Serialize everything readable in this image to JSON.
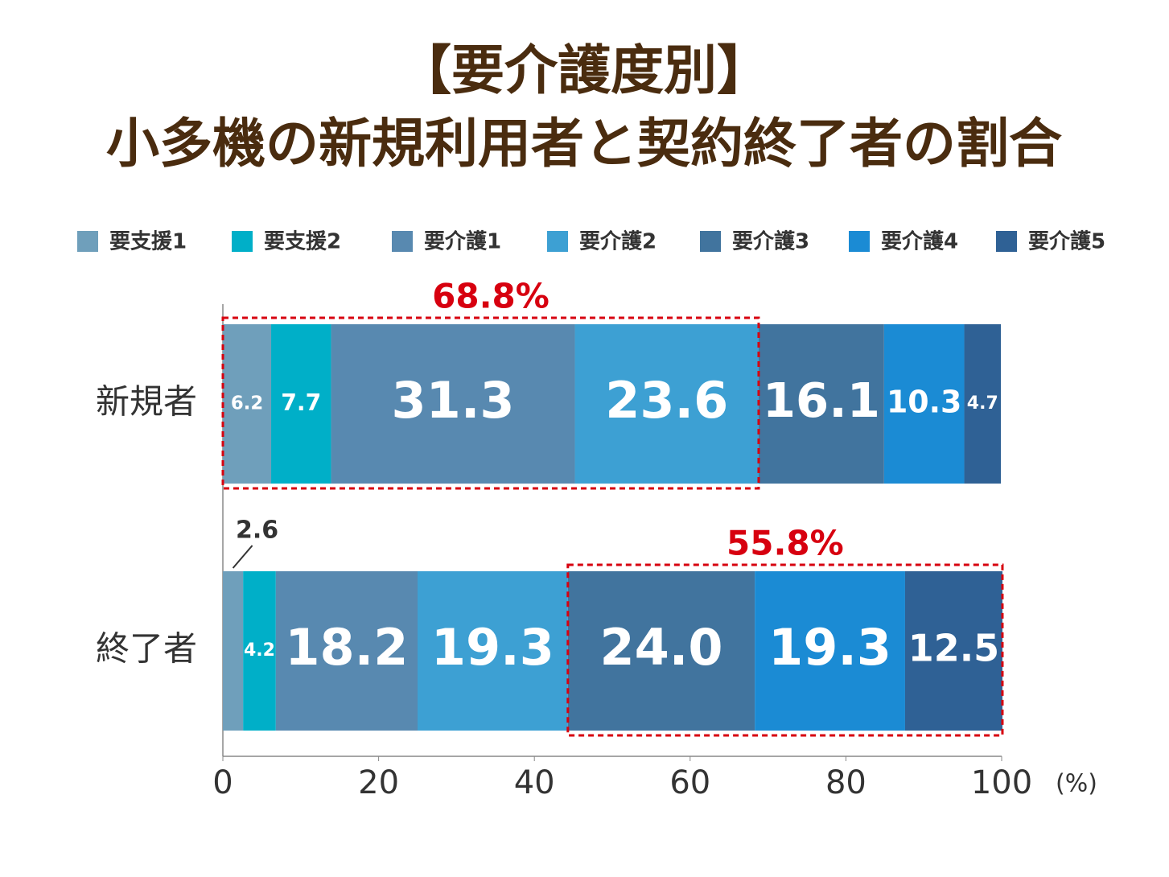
{
  "chart_data": {
    "type": "stacked_barh",
    "title": [
      "【要介護度別】",
      "小多機の新規利用者と契約終了者の割合"
    ],
    "categories": [
      "新規者",
      "終了者"
    ],
    "series": [
      {
        "name": "要支援1",
        "color": "#6f9fbb",
        "values": [
          6.2,
          2.6
        ]
      },
      {
        "name": "要支援2",
        "color": "#00afc8",
        "values": [
          7.7,
          4.2
        ]
      },
      {
        "name": "要介護1",
        "color": "#5889b0",
        "values": [
          31.3,
          18.2
        ]
      },
      {
        "name": "要介護2",
        "color": "#3da0d3",
        "values": [
          23.6,
          19.3
        ]
      },
      {
        "name": "要介護3",
        "color": "#41749e",
        "values": [
          16.1,
          24.0
        ],
        "value_labels": [
          "16.1",
          "24.0"
        ]
      },
      {
        "name": "要介護4",
        "color": "#1b8bd4",
        "values": [
          10.3,
          19.3
        ]
      },
      {
        "name": "要介護5",
        "color": "#2f6195",
        "values": [
          4.7,
          12.5
        ]
      }
    ],
    "xlim": [
      0,
      100
    ],
    "xticks": [
      0,
      20,
      40,
      60,
      80,
      100
    ],
    "xlabel": "(%)",
    "legend": "top",
    "annotations": [
      {
        "text": "68.8%",
        "category": "新規者",
        "series": [
          "要支援1",
          "要支援2",
          "要介護1",
          "要介護2"
        ]
      },
      {
        "text": "55.8%",
        "category": "終了者",
        "series": [
          "要介護3",
          "要介護4",
          "要介護5"
        ]
      }
    ]
  }
}
